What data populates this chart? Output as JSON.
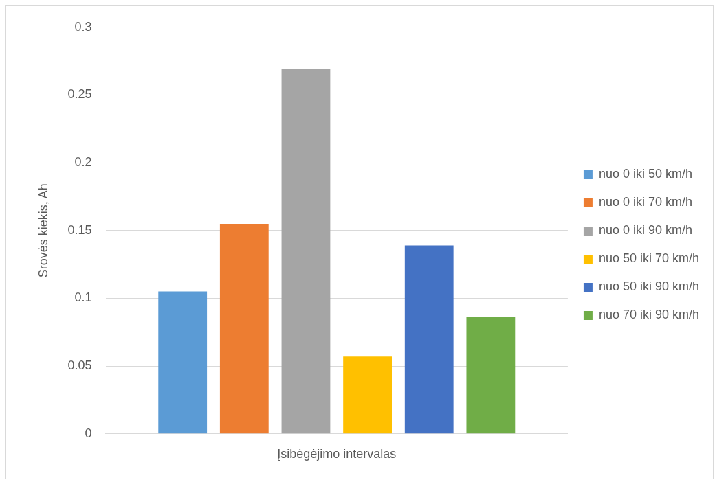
{
  "chart_data": {
    "type": "bar",
    "xlabel": "Įsibėgėjimo intervalas",
    "ylabel": "Srovės kiekis, Ah",
    "categories": [
      null
    ],
    "series": [
      {
        "name": "nuo 0 iki 50 km/h",
        "color": "#5b9bd5",
        "values": [
          0.105
        ]
      },
      {
        "name": "nuo 0 iki 70 km/h",
        "color": "#ed7d31",
        "values": [
          0.155
        ]
      },
      {
        "name": "nuo 0 iki 90 km/h",
        "color": "#a5a5a5",
        "values": [
          0.269
        ]
      },
      {
        "name": "nuo 50 iki 70 km/h",
        "color": "#ffc000",
        "values": [
          0.057
        ]
      },
      {
        "name": "nuo 50 iki 90 km/h",
        "color": "#4472c4",
        "values": [
          0.139
        ]
      },
      {
        "name": "nuo 70 iki 90 km/h",
        "color": "#70ad47",
        "values": [
          0.086
        ]
      }
    ],
    "ylim": [
      0,
      0.3
    ],
    "yticks": [
      0,
      0.05,
      0.1,
      0.15,
      0.2,
      0.25,
      0.3
    ],
    "grid": "y",
    "legend": "right"
  }
}
